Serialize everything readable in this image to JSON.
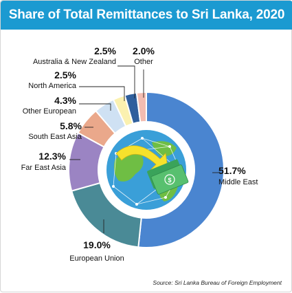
{
  "title": "Share of Total Remittances to Sri Lanka, 2020",
  "source": "Source: Sri Lanka Bureau of Foreign Employment",
  "colors": {
    "header_bg": "#1b9ad1",
    "globe": "#3a9fd8"
  },
  "chart_data": {
    "type": "pie",
    "variant": "donut",
    "title": "Share of Total Remittances to Sri Lanka, 2020",
    "unit": "%",
    "slices": [
      {
        "label": "Middle East",
        "value_text": "51.7%",
        "value": 51.7,
        "color": "#4a85d0"
      },
      {
        "label": "European Union",
        "value_text": "19.0%",
        "value": 19.0,
        "color": "#4a8a96"
      },
      {
        "label": "Far East Asia",
        "value_text": "12.3%",
        "value": 12.3,
        "color": "#9b84c3"
      },
      {
        "label": "South East Asia",
        "value_text": "5.8%",
        "value": 5.8,
        "color": "#eaa88b"
      },
      {
        "label": "Other European",
        "value_text": "4.3%",
        "value": 4.3,
        "color": "#cfe1f3"
      },
      {
        "label": "North America",
        "value_text": "2.5%",
        "value": 2.5,
        "color": "#fbf1b0"
      },
      {
        "label": "Australia & New Zealand",
        "value_text": "2.5%",
        "value": 2.5,
        "color": "#2f5f9d"
      },
      {
        "label": "Other",
        "value_text": "2.0%",
        "value": 2.0,
        "color": "#f3bcb1"
      }
    ]
  }
}
